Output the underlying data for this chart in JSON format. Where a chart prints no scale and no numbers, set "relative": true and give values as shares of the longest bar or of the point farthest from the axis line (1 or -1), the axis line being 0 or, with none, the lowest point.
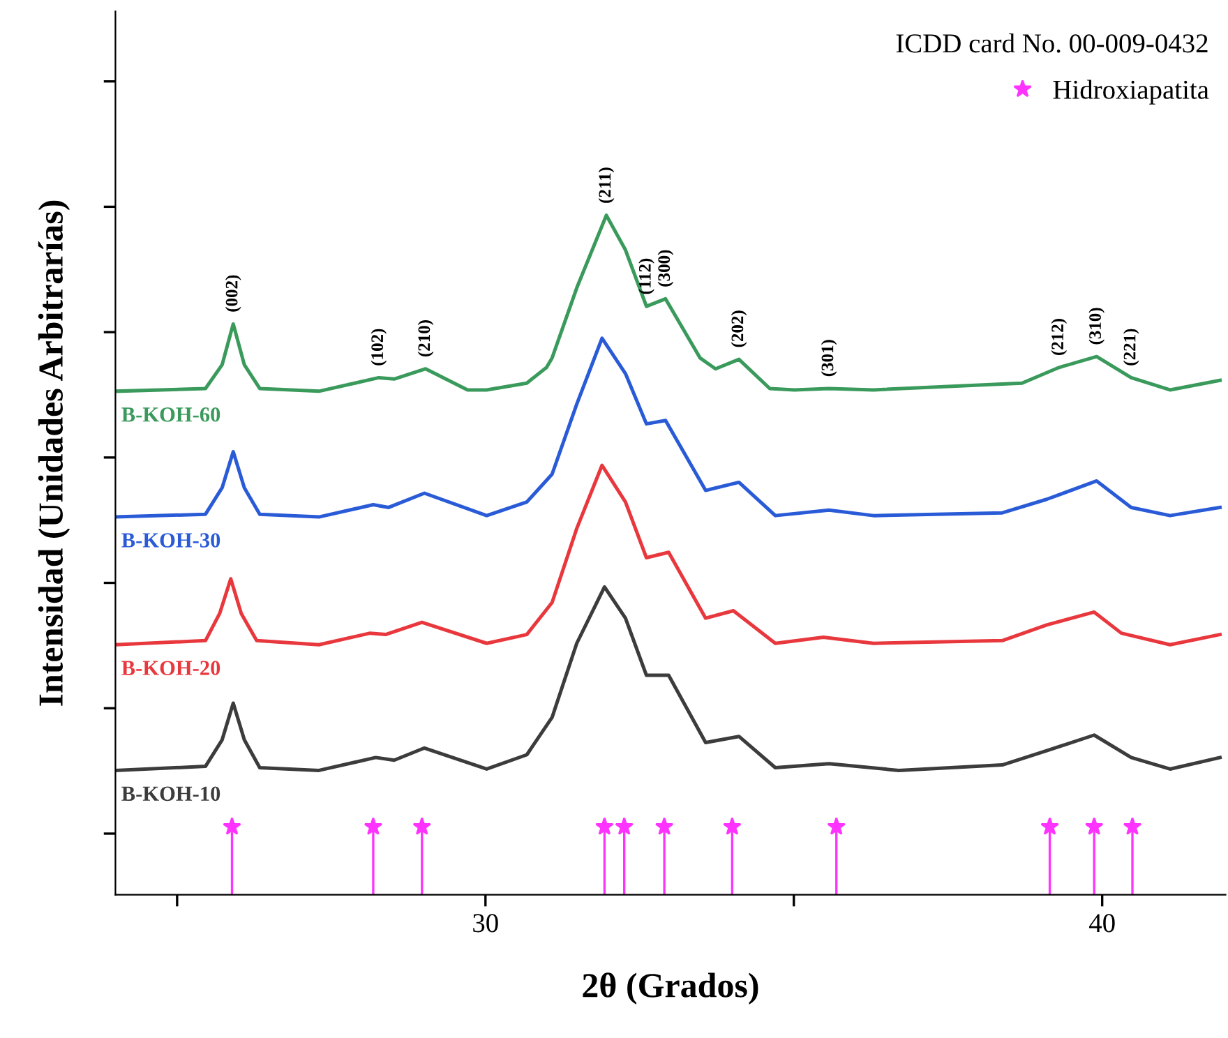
{
  "chart_data": {
    "type": "line",
    "relative": true,
    "xlabel": "2θ (Grados)",
    "ylabel": "Intensidad (Unidades Arbitrarías)",
    "xlim": [
      24,
      42
    ],
    "xticks": [
      {
        "value": 25,
        "label": null
      },
      30,
      {
        "value": 35,
        "label": null
      },
      40
    ],
    "grid": false,
    "legend": "top right",
    "annotations": [
      "ICDD card No. 00-009-0432",
      {
        "text": "(002)",
        "x": 25.91,
        "y": 0.84
      },
      {
        "text": "(102)",
        "x": 28.27,
        "y": 0.761
      },
      {
        "text": "(210)",
        "x": 29.03,
        "y": 0.774
      },
      {
        "text": "(211)",
        "x": 31.96,
        "y": 1.0
      },
      {
        "text": "(112)",
        "x": 32.61,
        "y": 0.866
      },
      {
        "text": "(300)",
        "x": 32.92,
        "y": 0.877
      },
      {
        "text": "(202)",
        "x": 34.11,
        "y": 0.788
      },
      {
        "text": "(301)",
        "x": 35.57,
        "y": 0.745
      },
      {
        "text": "(212)",
        "x": 39.3,
        "y": 0.776
      },
      {
        "text": "(310)",
        "x": 39.91,
        "y": 0.792
      },
      {
        "text": "(221)",
        "x": 40.47,
        "y": 0.761
      }
    ],
    "series": [
      {
        "name": "B-KOH-60",
        "color": "#3a9a5c",
        "x": [
          24.0,
          25.46,
          25.73,
          25.91,
          26.09,
          26.34,
          27.3,
          28.27,
          28.52,
          29.03,
          29.71,
          30.02,
          30.67,
          30.99,
          31.08,
          31.48,
          31.96,
          32.27,
          32.61,
          32.92,
          33.48,
          33.73,
          34.11,
          34.61,
          35.01,
          35.57,
          36.29,
          38.7,
          39.3,
          39.91,
          40.47,
          41.1,
          41.91
        ],
        "values": [
          0.741,
          0.745,
          0.78,
          0.84,
          0.78,
          0.745,
          0.741,
          0.761,
          0.759,
          0.774,
          0.743,
          0.743,
          0.753,
          0.776,
          0.79,
          0.893,
          1.0,
          0.949,
          0.866,
          0.877,
          0.79,
          0.774,
          0.788,
          0.745,
          0.743,
          0.745,
          0.743,
          0.753,
          0.776,
          0.792,
          0.761,
          0.743,
          0.757
        ]
      },
      {
        "name": "B-KOH-30",
        "color": "#2a5bd7",
        "x": [
          24.0,
          25.46,
          25.73,
          25.91,
          26.09,
          26.34,
          27.3,
          28.18,
          28.43,
          29.01,
          30.02,
          30.67,
          31.08,
          31.48,
          31.89,
          32.27,
          32.61,
          32.92,
          33.57,
          34.11,
          34.7,
          35.57,
          36.29,
          38.38,
          39.1,
          39.91,
          40.47,
          41.1,
          41.91
        ],
        "values": [
          0.556,
          0.56,
          0.599,
          0.652,
          0.599,
          0.56,
          0.556,
          0.574,
          0.57,
          0.591,
          0.558,
          0.578,
          0.619,
          0.722,
          0.819,
          0.767,
          0.693,
          0.698,
          0.595,
          0.607,
          0.558,
          0.566,
          0.558,
          0.562,
          0.582,
          0.609,
          0.57,
          0.558,
          0.57
        ]
      },
      {
        "name": "B-KOH-20",
        "color": "#e8383d",
        "x": [
          24.0,
          25.46,
          25.69,
          25.87,
          26.04,
          26.29,
          27.3,
          28.13,
          28.38,
          28.97,
          30.02,
          30.67,
          31.08,
          31.48,
          31.89,
          32.27,
          32.61,
          32.97,
          33.57,
          34.02,
          34.7,
          35.48,
          36.29,
          38.38,
          39.1,
          39.87,
          40.31,
          41.1,
          41.91
        ],
        "values": [
          0.368,
          0.374,
          0.414,
          0.465,
          0.414,
          0.374,
          0.368,
          0.385,
          0.383,
          0.401,
          0.37,
          0.383,
          0.43,
          0.539,
          0.632,
          0.578,
          0.496,
          0.504,
          0.407,
          0.418,
          0.37,
          0.379,
          0.37,
          0.374,
          0.397,
          0.416,
          0.385,
          0.368,
          0.383
        ]
      },
      {
        "name": "B-KOH-10",
        "color": "#3c3c3c",
        "x": [
          24.0,
          25.46,
          25.73,
          25.91,
          26.09,
          26.34,
          27.3,
          28.22,
          28.52,
          29.01,
          30.02,
          30.67,
          31.08,
          31.48,
          31.93,
          32.27,
          32.61,
          32.97,
          33.57,
          34.11,
          34.7,
          35.57,
          36.7,
          38.38,
          39.1,
          39.87,
          40.47,
          41.1,
          41.91
        ],
        "values": [
          0.183,
          0.189,
          0.228,
          0.282,
          0.228,
          0.187,
          0.183,
          0.202,
          0.198,
          0.216,
          0.185,
          0.206,
          0.261,
          0.37,
          0.453,
          0.407,
          0.323,
          0.323,
          0.224,
          0.233,
          0.187,
          0.193,
          0.183,
          0.191,
          0.212,
          0.235,
          0.202,
          0.185,
          0.202
        ]
      },
      {
        "name": "Hidroxiapatita",
        "type": "lollipop",
        "color": "#ff33ff",
        "marker": "star",
        "x": [
          25.89,
          28.18,
          28.97,
          31.93,
          32.25,
          32.9,
          34.0,
          35.69,
          39.15,
          39.87,
          40.49
        ],
        "values": [
          0.1,
          0.1,
          0.1,
          0.1,
          0.1,
          0.1,
          0.1,
          0.1,
          0.1,
          0.1,
          0.1
        ]
      }
    ]
  }
}
